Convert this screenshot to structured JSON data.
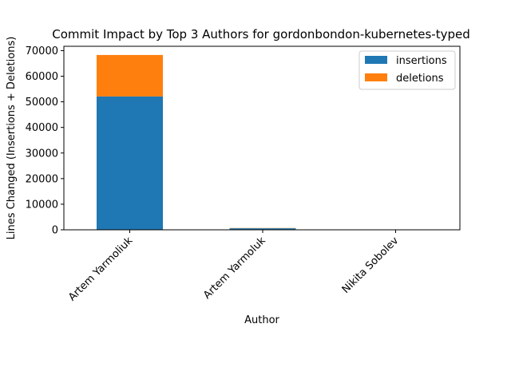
{
  "chart_data": {
    "type": "bar",
    "stacked": true,
    "title": "Commit Impact by Top 3 Authors for gordonbondon-kubernetes-typed",
    "xlabel": "Author",
    "ylabel": "Lines Changed (Insertions + Deletions)",
    "categories": [
      "Artem Yarmoliuk",
      "Artem Yarmoluk",
      "Nikita Sobolev"
    ],
    "series": [
      {
        "name": "insertions",
        "color": "#1f77b4",
        "values": [
          52100,
          600,
          40
        ]
      },
      {
        "name": "deletions",
        "color": "#ff7f0e",
        "values": [
          16200,
          100,
          10
        ]
      }
    ],
    "ylim": [
      0,
      71700
    ],
    "yticks": [
      0,
      10000,
      20000,
      30000,
      40000,
      50000,
      60000,
      70000
    ],
    "grid": false,
    "legend_position": "top-right"
  }
}
